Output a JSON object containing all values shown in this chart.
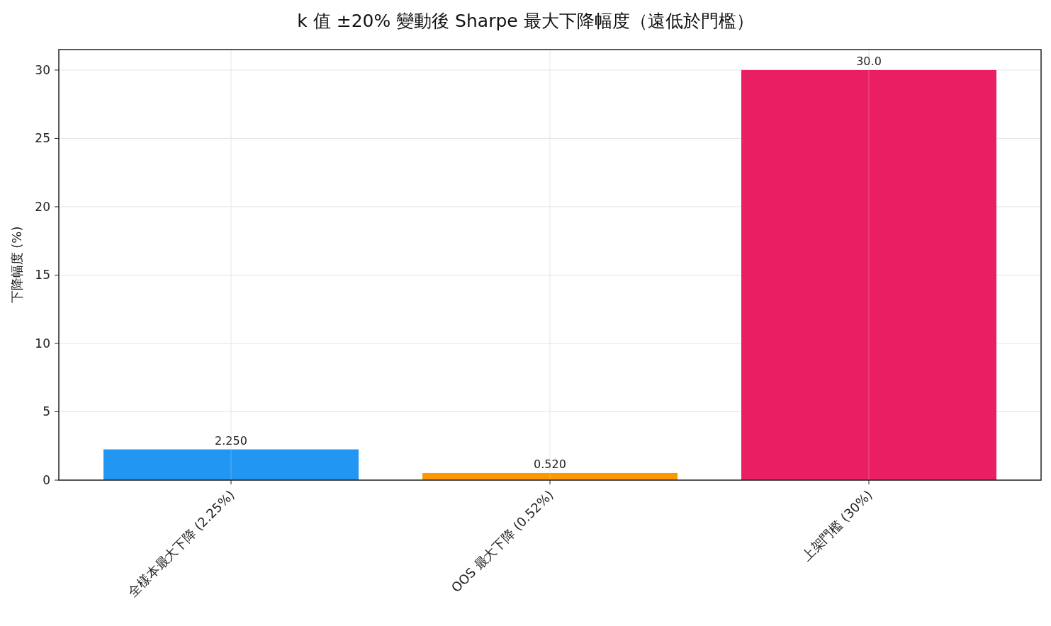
{
  "chart_data": {
    "type": "bar",
    "title": "k 值 ±20% 變動後 Sharpe 最大下降幅度（遠低於門檻）",
    "ylabel": "下降幅度 (%)",
    "categories": [
      "全樣本最大下降 (2.25%)",
      "OOS 最大下降 (0.52%)",
      "上架門檻 (30%)"
    ],
    "values": [
      2.25,
      0.52,
      30
    ],
    "colors": [
      "#2196f3",
      "#ff9800",
      "#e91e63"
    ],
    "value_labels": [
      "2.250",
      "0.520",
      "30.0"
    ],
    "ylim": [
      0,
      31.5
    ],
    "yticks": [
      0,
      5,
      10,
      15,
      20,
      25,
      30
    ],
    "grid": true
  }
}
